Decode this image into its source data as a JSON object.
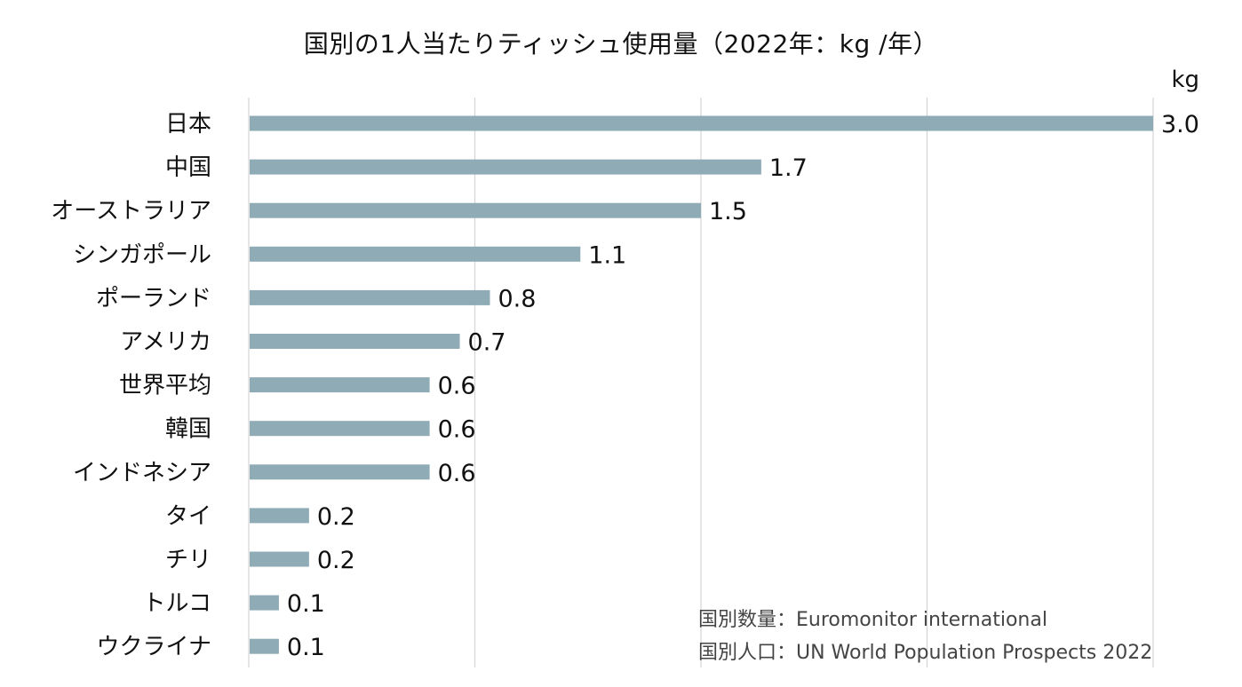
{
  "chart_data": {
    "type": "bar",
    "orientation": "horizontal",
    "title": "国別の1人当たりティッシュ使用量（2022年：kg /年）",
    "unit": "kg",
    "categories": [
      "日本",
      "中国",
      "オーストラリア",
      "シンガポール",
      "ポーランド",
      "アメリカ",
      "世界平均",
      "韓国",
      "インドネシア",
      "タイ",
      "チリ",
      "トルコ",
      "ウクライナ"
    ],
    "values": [
      3.0,
      1.7,
      1.5,
      1.1,
      0.8,
      0.7,
      0.6,
      0.6,
      0.6,
      0.2,
      0.2,
      0.1,
      0.1
    ],
    "value_labels": [
      "3.0",
      "1.7",
      "1.5",
      "1.1",
      "0.8",
      "0.7",
      "0.6",
      "0.6",
      "0.6",
      "0.2",
      "0.2",
      "0.1",
      "0.1"
    ],
    "xlim": [
      0,
      3.0
    ],
    "grid": true,
    "bar_color": "#8facb6",
    "sources": [
      "国別数量：Euromonitor international",
      "国別人口：UN World Population Prospects 2022"
    ]
  }
}
